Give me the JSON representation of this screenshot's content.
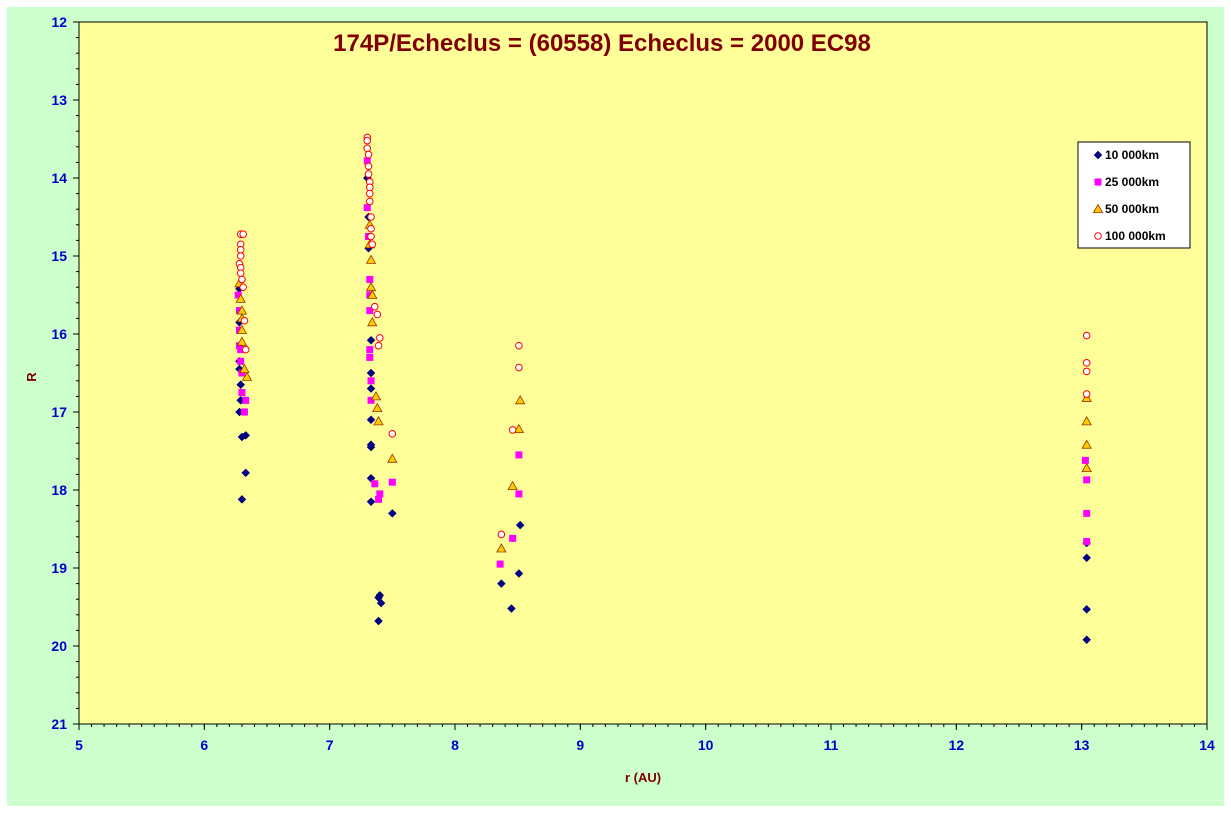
{
  "chart_data": {
    "type": "scatter",
    "title": "174P/Echeclus = (60558) Echeclus = 2000 EC98",
    "xlabel": "r (AU)",
    "ylabel": "R",
    "xlim": [
      5,
      14
    ],
    "ylim": [
      21,
      12
    ],
    "y_inverted": true,
    "x_ticks": [
      "5",
      "6",
      "7",
      "8",
      "9",
      "10",
      "11",
      "12",
      "13",
      "14"
    ],
    "y_ticks": [
      "12",
      "13",
      "14",
      "15",
      "16",
      "17",
      "18",
      "19",
      "20",
      "21"
    ],
    "grid": false,
    "legend_position": "top-right",
    "colors": {
      "outer_background": "#ccffcc",
      "plot_background": "#ffff99",
      "axis_text": "#0000cc",
      "title_text": "#800000"
    },
    "series": [
      {
        "name": "10 000km",
        "marker": "diamond",
        "color": "#000080",
        "points": [
          [
            6.28,
            15.42
          ],
          [
            6.28,
            15.85
          ],
          [
            6.28,
            16.35
          ],
          [
            6.28,
            16.45
          ],
          [
            6.29,
            16.65
          ],
          [
            6.29,
            16.85
          ],
          [
            6.28,
            17.0
          ],
          [
            6.3,
            17.32
          ],
          [
            6.33,
            17.3
          ],
          [
            6.33,
            17.78
          ],
          [
            6.3,
            18.12
          ],
          [
            7.3,
            14.0
          ],
          [
            7.31,
            14.5
          ],
          [
            7.31,
            14.9
          ],
          [
            7.33,
            16.08
          ],
          [
            7.33,
            16.5
          ],
          [
            7.33,
            16.7
          ],
          [
            7.33,
            17.1
          ],
          [
            7.33,
            17.42
          ],
          [
            7.33,
            17.45
          ],
          [
            7.33,
            17.85
          ],
          [
            7.33,
            18.15
          ],
          [
            7.39,
            19.38
          ],
          [
            7.4,
            19.35
          ],
          [
            7.41,
            19.45
          ],
          [
            7.39,
            19.68
          ],
          [
            7.5,
            18.3
          ],
          [
            8.37,
            19.2
          ],
          [
            8.45,
            19.52
          ],
          [
            8.52,
            18.45
          ],
          [
            8.51,
            19.07
          ],
          [
            13.04,
            18.68
          ],
          [
            13.04,
            18.87
          ],
          [
            13.04,
            19.53
          ],
          [
            13.04,
            19.92
          ]
        ]
      },
      {
        "name": "25 000km",
        "marker": "square",
        "color": "#ff00ff",
        "points": [
          [
            6.27,
            15.5
          ],
          [
            6.28,
            15.7
          ],
          [
            6.28,
            15.95
          ],
          [
            6.28,
            16.15
          ],
          [
            6.29,
            16.2
          ],
          [
            6.29,
            16.35
          ],
          [
            6.3,
            16.5
          ],
          [
            6.3,
            16.75
          ],
          [
            6.33,
            16.85
          ],
          [
            6.32,
            17.0
          ],
          [
            7.3,
            13.78
          ],
          [
            7.3,
            14.38
          ],
          [
            7.31,
            14.75
          ],
          [
            7.32,
            15.3
          ],
          [
            7.32,
            15.5
          ],
          [
            7.32,
            15.7
          ],
          [
            7.32,
            16.2
          ],
          [
            7.32,
            16.3
          ],
          [
            7.33,
            16.6
          ],
          [
            7.33,
            16.85
          ],
          [
            7.36,
            17.92
          ],
          [
            7.4,
            18.05
          ],
          [
            7.39,
            18.12
          ],
          [
            7.5,
            17.9
          ],
          [
            8.36,
            18.95
          ],
          [
            8.46,
            18.62
          ],
          [
            8.51,
            17.55
          ],
          [
            8.51,
            18.05
          ],
          [
            13.03,
            17.62
          ],
          [
            13.04,
            17.87
          ],
          [
            13.04,
            18.3
          ],
          [
            13.04,
            18.66
          ]
        ]
      },
      {
        "name": "50 000km",
        "marker": "triangle",
        "color": "#ffcc00",
        "points": [
          [
            6.28,
            15.35
          ],
          [
            6.29,
            15.55
          ],
          [
            6.3,
            15.7
          ],
          [
            6.3,
            15.8
          ],
          [
            6.3,
            15.95
          ],
          [
            6.3,
            16.1
          ],
          [
            6.32,
            16.45
          ],
          [
            6.34,
            16.55
          ],
          [
            7.32,
            14.6
          ],
          [
            7.32,
            14.85
          ],
          [
            7.33,
            15.05
          ],
          [
            7.33,
            15.4
          ],
          [
            7.34,
            15.5
          ],
          [
            7.34,
            15.85
          ],
          [
            7.37,
            16.8
          ],
          [
            7.38,
            16.95
          ],
          [
            7.39,
            17.12
          ],
          [
            7.5,
            17.6
          ],
          [
            8.37,
            18.75
          ],
          [
            8.46,
            17.95
          ],
          [
            8.52,
            16.85
          ],
          [
            8.51,
            17.22
          ],
          [
            13.04,
            16.82
          ],
          [
            13.04,
            17.12
          ],
          [
            13.04,
            17.42
          ],
          [
            13.04,
            17.72
          ]
        ]
      },
      {
        "name": "100 000km",
        "marker": "circle",
        "color": "#ff0000",
        "points": [
          [
            6.29,
            14.72
          ],
          [
            6.31,
            14.72
          ],
          [
            6.29,
            14.85
          ],
          [
            6.29,
            14.92
          ],
          [
            6.29,
            15.0
          ],
          [
            6.28,
            15.1
          ],
          [
            6.29,
            15.15
          ],
          [
            6.29,
            15.22
          ],
          [
            6.3,
            15.3
          ],
          [
            6.31,
            15.4
          ],
          [
            6.32,
            15.83
          ],
          [
            6.33,
            16.2
          ],
          [
            7.3,
            13.48
          ],
          [
            7.3,
            13.52
          ],
          [
            7.3,
            13.62
          ],
          [
            7.31,
            13.7
          ],
          [
            7.31,
            13.85
          ],
          [
            7.31,
            13.95
          ],
          [
            7.32,
            14.05
          ],
          [
            7.32,
            14.12
          ],
          [
            7.32,
            14.2
          ],
          [
            7.32,
            14.3
          ],
          [
            7.33,
            14.5
          ],
          [
            7.33,
            14.65
          ],
          [
            7.33,
            14.75
          ],
          [
            7.34,
            14.85
          ],
          [
            7.36,
            15.65
          ],
          [
            7.38,
            15.75
          ],
          [
            7.4,
            16.05
          ],
          [
            7.39,
            16.15
          ],
          [
            7.5,
            17.28
          ],
          [
            8.37,
            18.57
          ],
          [
            8.46,
            17.23
          ],
          [
            8.51,
            16.15
          ],
          [
            8.51,
            16.43
          ],
          [
            13.04,
            16.02
          ],
          [
            13.04,
            16.37
          ],
          [
            13.04,
            16.48
          ],
          [
            13.04,
            16.77
          ]
        ]
      }
    ]
  }
}
